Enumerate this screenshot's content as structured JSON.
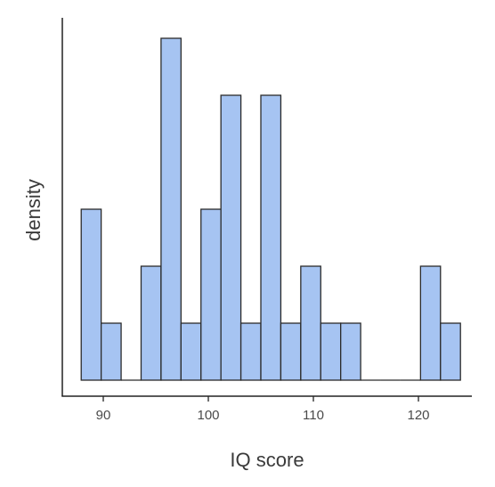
{
  "chart_data": {
    "type": "bar",
    "xlabel": "IQ score",
    "ylabel": "density",
    "xlim": [
      86.4,
      125.4
    ],
    "ylim": [
      0,
      6.3
    ],
    "y_tick_labels_shown": false,
    "grid": false,
    "legend": "none",
    "bin_width": 1.9,
    "bins": [
      {
        "start": 87.9,
        "end": 89.8,
        "value": 3
      },
      {
        "start": 89.8,
        "end": 91.7,
        "value": 1
      },
      {
        "start": 91.7,
        "end": 93.6,
        "value": 0
      },
      {
        "start": 93.6,
        "end": 95.5,
        "value": 2
      },
      {
        "start": 95.5,
        "end": 97.4,
        "value": 6
      },
      {
        "start": 97.4,
        "end": 99.3,
        "value": 1
      },
      {
        "start": 99.3,
        "end": 101.2,
        "value": 3
      },
      {
        "start": 101.2,
        "end": 103.1,
        "value": 5
      },
      {
        "start": 103.1,
        "end": 105.0,
        "value": 1
      },
      {
        "start": 105.0,
        "end": 106.9,
        "value": 5
      },
      {
        "start": 106.9,
        "end": 108.8,
        "value": 1
      },
      {
        "start": 108.8,
        "end": 110.7,
        "value": 2
      },
      {
        "start": 110.7,
        "end": 112.6,
        "value": 1
      },
      {
        "start": 112.6,
        "end": 114.5,
        "value": 1
      },
      {
        "start": 114.5,
        "end": 116.4,
        "value": 0
      },
      {
        "start": 116.4,
        "end": 118.3,
        "value": 0
      },
      {
        "start": 118.3,
        "end": 120.2,
        "value": 0
      },
      {
        "start": 120.2,
        "end": 122.1,
        "value": 2
      },
      {
        "start": 122.1,
        "end": 124.0,
        "value": 1
      }
    ],
    "x_ticks": [
      90,
      100,
      110,
      120
    ],
    "colors": {
      "bar_fill": "#a6c4f2",
      "bar_stroke": "#2b2b2b",
      "axis": "#222222"
    }
  }
}
